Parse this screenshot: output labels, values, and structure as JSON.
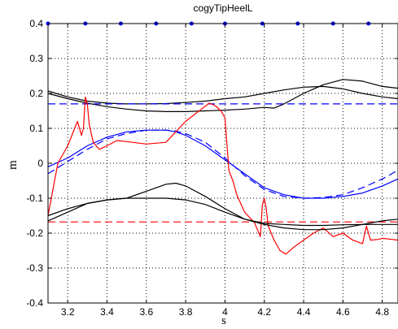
{
  "chart_data": {
    "type": "line",
    "title": "cogyTipHeelL",
    "xlabel": "s",
    "ylabel": "m",
    "xlim": [
      3.1,
      4.88
    ],
    "ylim": [
      -0.4,
      0.4
    ],
    "grid": true,
    "xticks": [
      3.2,
      3.4,
      3.6,
      3.8,
      4.0,
      4.2,
      4.4,
      4.6,
      4.8
    ],
    "yticks": [
      -0.4,
      -0.3,
      -0.2,
      -0.1,
      0.0,
      0.1,
      0.2,
      0.3,
      0.4
    ],
    "xtick_labels": [
      "3.2",
      "3.4",
      "3.6",
      "3.8",
      "4",
      "4.2",
      "4.4",
      "4.6",
      "4.8"
    ],
    "ytick_labels": [
      "-0.4",
      "-0.3",
      "-0.2",
      "-0.1",
      "0",
      "0.1",
      "0.2",
      "0.3",
      "0.4"
    ],
    "markers": {
      "color": "#0000ff",
      "y": 0.4,
      "x": [
        3.1,
        3.29,
        3.47,
        3.65,
        3.83,
        4.0,
        4.19,
        4.37,
        4.55,
        4.73
      ]
    },
    "series": [
      {
        "style": "solid",
        "color": "#000000",
        "x": [
          3.1,
          3.2,
          3.3,
          3.4,
          3.5,
          3.6,
          3.7,
          3.8,
          3.9,
          4.0,
          4.1,
          4.2,
          4.3,
          4.4,
          4.5,
          4.6,
          4.7,
          4.8,
          4.88
        ],
        "y": [
          0.207,
          0.19,
          0.178,
          0.172,
          0.17,
          0.17,
          0.171,
          0.174,
          0.178,
          0.185,
          0.19,
          0.2,
          0.21,
          0.218,
          0.22,
          0.213,
          0.2,
          0.19,
          0.185
        ]
      },
      {
        "style": "solid",
        "color": "#000000",
        "x": [
          3.1,
          3.2,
          3.3,
          3.4,
          3.5,
          3.6,
          3.7,
          3.8,
          3.9,
          4.0,
          4.1,
          4.2,
          4.25,
          4.3,
          4.4,
          4.5,
          4.6,
          4.7,
          4.8,
          4.88
        ],
        "y": [
          0.2,
          0.185,
          0.172,
          0.162,
          0.155,
          0.15,
          0.148,
          0.148,
          0.15,
          0.152,
          0.155,
          0.16,
          0.158,
          0.17,
          0.2,
          0.225,
          0.24,
          0.235,
          0.22,
          0.215
        ]
      },
      {
        "style": "dashed",
        "color": "#0000ff",
        "x": [
          3.1,
          4.88
        ],
        "y": [
          0.17,
          0.17
        ]
      },
      {
        "style": "solid",
        "color": "#0000ff",
        "x": [
          3.1,
          3.2,
          3.3,
          3.4,
          3.5,
          3.6,
          3.7,
          3.75,
          3.8,
          3.9,
          4.0,
          4.1,
          4.2,
          4.3,
          4.4,
          4.5,
          4.6,
          4.7,
          4.8,
          4.88
        ],
        "y": [
          -0.01,
          0.015,
          0.05,
          0.075,
          0.09,
          0.095,
          0.095,
          0.09,
          0.08,
          0.05,
          0.01,
          -0.03,
          -0.07,
          -0.09,
          -0.1,
          -0.1,
          -0.095,
          -0.085,
          -0.065,
          -0.045
        ]
      },
      {
        "style": "dashed",
        "color": "#0000ff",
        "x": [
          3.1,
          3.2,
          3.3,
          3.4,
          3.5,
          3.6,
          3.7,
          3.75,
          3.8,
          3.9,
          4.0,
          4.1,
          4.2,
          4.3,
          4.4,
          4.5,
          4.6,
          4.7,
          4.8,
          4.88
        ],
        "y": [
          -0.03,
          0.005,
          0.04,
          0.07,
          0.085,
          0.095,
          0.095,
          0.092,
          0.085,
          0.06,
          0.015,
          -0.035,
          -0.075,
          -0.095,
          -0.1,
          -0.098,
          -0.09,
          -0.07,
          -0.045,
          -0.02
        ]
      },
      {
        "style": "dashed",
        "color": "#ff0000",
        "x": [
          3.1,
          4.88
        ],
        "y": [
          -0.168,
          -0.168
        ]
      },
      {
        "style": "solid",
        "color": "#ff0000",
        "x": [
          3.1,
          3.15,
          3.2,
          3.25,
          3.27,
          3.28,
          3.29,
          3.3,
          3.31,
          3.33,
          3.36,
          3.4,
          3.45,
          3.5,
          3.6,
          3.7,
          3.8,
          3.88,
          3.92,
          3.95,
          3.98,
          4.0,
          4.02,
          4.04,
          4.06,
          4.1,
          4.15,
          4.18,
          4.19,
          4.2,
          4.21,
          4.22,
          4.25,
          4.28,
          4.31,
          4.35,
          4.4,
          4.45,
          4.5,
          4.55,
          4.6,
          4.65,
          4.7,
          4.72,
          4.74,
          4.78,
          4.8,
          4.85,
          4.88
        ],
        "y": [
          -0.15,
          0.0,
          0.05,
          0.12,
          0.08,
          0.1,
          0.19,
          0.17,
          0.11,
          0.06,
          0.04,
          0.05,
          0.065,
          0.062,
          0.055,
          0.06,
          0.12,
          0.155,
          0.172,
          0.165,
          0.15,
          0.13,
          -0.02,
          -0.05,
          -0.09,
          -0.14,
          -0.17,
          -0.21,
          -0.12,
          -0.1,
          -0.13,
          -0.18,
          -0.22,
          -0.25,
          -0.26,
          -0.24,
          -0.22,
          -0.2,
          -0.185,
          -0.21,
          -0.2,
          -0.22,
          -0.23,
          -0.18,
          -0.22,
          -0.218,
          -0.215,
          -0.218,
          -0.22
        ]
      },
      {
        "style": "solid",
        "color": "#000000",
        "x": [
          3.1,
          3.2,
          3.3,
          3.4,
          3.5,
          3.6,
          3.7,
          3.75,
          3.8,
          3.9,
          4.0,
          4.1,
          4.2,
          4.3,
          4.4,
          4.5,
          4.6,
          4.7,
          4.8,
          4.88
        ],
        "y": [
          -0.15,
          -0.13,
          -0.115,
          -0.105,
          -0.1,
          -0.08,
          -0.06,
          -0.057,
          -0.065,
          -0.095,
          -0.13,
          -0.16,
          -0.175,
          -0.185,
          -0.19,
          -0.19,
          -0.185,
          -0.175,
          -0.165,
          -0.16
        ]
      },
      {
        "style": "solid",
        "color": "#000000",
        "x": [
          3.1,
          3.2,
          3.3,
          3.4,
          3.5,
          3.6,
          3.7,
          3.8,
          3.9,
          4.0,
          4.1,
          4.2,
          4.3,
          4.4,
          4.5,
          4.6,
          4.7,
          4.8,
          4.88
        ],
        "y": [
          -0.165,
          -0.14,
          -0.115,
          -0.105,
          -0.1,
          -0.1,
          -0.1,
          -0.105,
          -0.118,
          -0.14,
          -0.16,
          -0.172,
          -0.175,
          -0.178,
          -0.178,
          -0.176,
          -0.175,
          -0.175,
          -0.175
        ]
      }
    ]
  }
}
